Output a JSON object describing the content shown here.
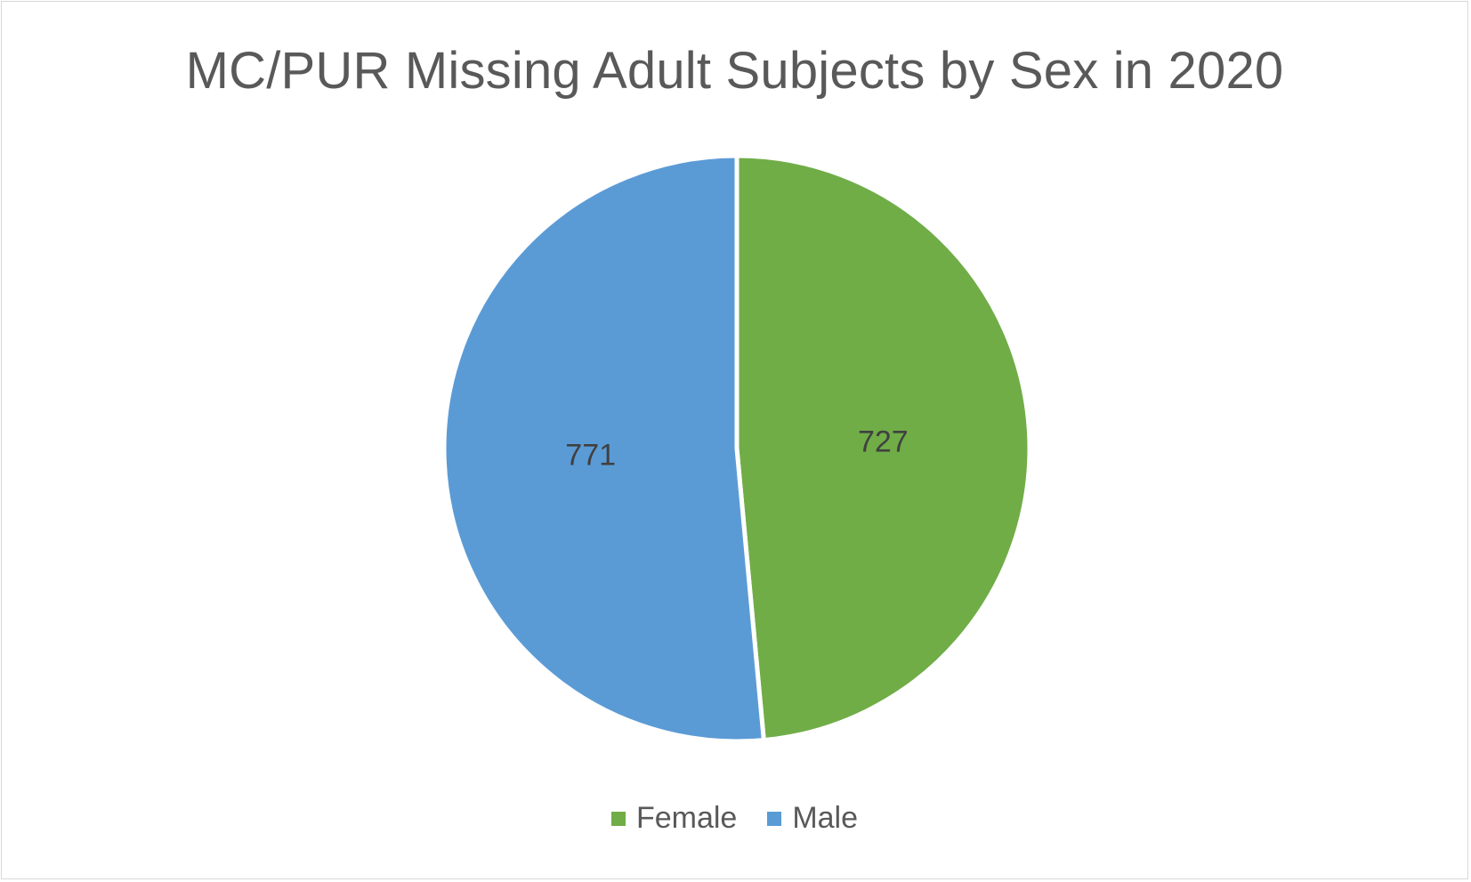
{
  "chart_data": {
    "type": "pie",
    "title": "MC/PUR Missing Adult Subjects by Sex in 2020",
    "categories": [
      "Female",
      "Male"
    ],
    "values": [
      727,
      771
    ],
    "colors": [
      "#70ad47",
      "#5b9bd5"
    ],
    "start": "12 o'clock, clockwise",
    "legend": "bottom",
    "data_labels": true
  }
}
